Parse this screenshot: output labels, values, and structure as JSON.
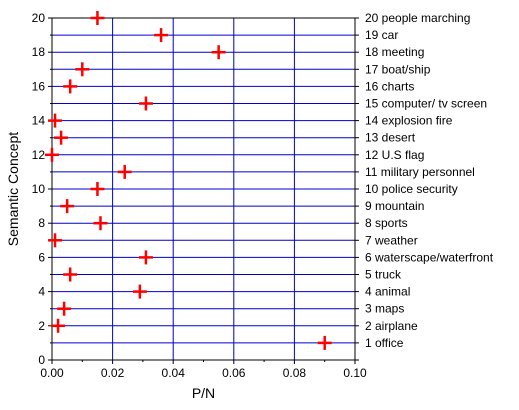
{
  "chart_data": {
    "type": "scatter",
    "title": "",
    "xlabel": "P/N",
    "ylabel": "Semantic Concept",
    "xlim": [
      0,
      0.1
    ],
    "ylim": [
      0,
      20
    ],
    "x_ticks": [
      "0.00",
      "0.02",
      "0.04",
      "0.06",
      "0.08",
      "0.10"
    ],
    "y_ticks": [
      "0",
      "2",
      "4",
      "6",
      "8",
      "10",
      "12",
      "14",
      "16",
      "18",
      "20"
    ],
    "grid": true,
    "marker": "+",
    "marker_color": "#ff0000",
    "grid_color": "#0000cc",
    "categories": [
      {
        "id": 1,
        "label": "1 office"
      },
      {
        "id": 2,
        "label": "2 airplane"
      },
      {
        "id": 3,
        "label": "3 maps"
      },
      {
        "id": 4,
        "label": "4 animal"
      },
      {
        "id": 5,
        "label": "5 truck"
      },
      {
        "id": 6,
        "label": "6 waterscape/waterfront"
      },
      {
        "id": 7,
        "label": "7 weather"
      },
      {
        "id": 8,
        "label": "8 sports"
      },
      {
        "id": 9,
        "label": "9 mountain"
      },
      {
        "id": 10,
        "label": "10 police security"
      },
      {
        "id": 11,
        "label": "11 military personnel"
      },
      {
        "id": 12,
        "label": "12 U.S flag"
      },
      {
        "id": 13,
        "label": "13 desert"
      },
      {
        "id": 14,
        "label": "14 explosion fire"
      },
      {
        "id": 15,
        "label": "15 computer/ tv screen"
      },
      {
        "id": 16,
        "label": "16 charts"
      },
      {
        "id": 17,
        "label": "17 boat/ship"
      },
      {
        "id": 18,
        "label": "18 meeting"
      },
      {
        "id": 19,
        "label": "19 car"
      },
      {
        "id": 20,
        "label": "20 people marching"
      }
    ],
    "points": [
      {
        "x": 0.09,
        "y": 1
      },
      {
        "x": 0.002,
        "y": 2
      },
      {
        "x": 0.004,
        "y": 3
      },
      {
        "x": 0.029,
        "y": 4
      },
      {
        "x": 0.006,
        "y": 5
      },
      {
        "x": 0.031,
        "y": 6
      },
      {
        "x": 0.001,
        "y": 7
      },
      {
        "x": 0.016,
        "y": 8
      },
      {
        "x": 0.005,
        "y": 9
      },
      {
        "x": 0.015,
        "y": 10
      },
      {
        "x": 0.024,
        "y": 11
      },
      {
        "x": 0.0,
        "y": 12
      },
      {
        "x": 0.003,
        "y": 13
      },
      {
        "x": 0.001,
        "y": 14
      },
      {
        "x": 0.031,
        "y": 15
      },
      {
        "x": 0.006,
        "y": 16
      },
      {
        "x": 0.01,
        "y": 17
      },
      {
        "x": 0.055,
        "y": 18
      },
      {
        "x": 0.036,
        "y": 19
      },
      {
        "x": 0.015,
        "y": 20
      }
    ]
  }
}
